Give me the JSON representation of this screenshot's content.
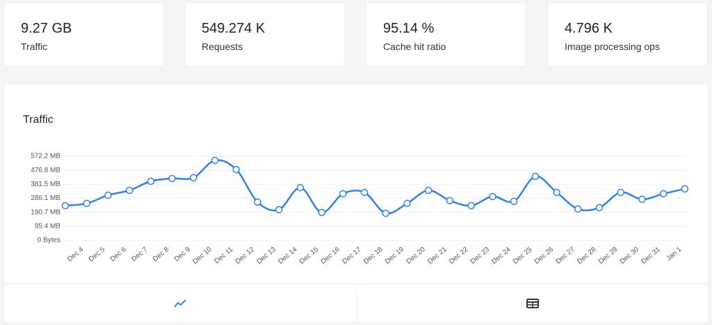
{
  "stats": [
    {
      "value": "9.27 GB",
      "label": "Traffic"
    },
    {
      "value": "549.274 K",
      "label": "Requests"
    },
    {
      "value": "95.14 %",
      "label": "Cache hit ratio"
    },
    {
      "value": "4.796 K",
      "label": "Image processing ops"
    }
  ],
  "chart_data": {
    "type": "line",
    "title": "Traffic",
    "categories": [
      null,
      "Dec 4",
      "Dec 5",
      "Dec 6",
      "Dec 7",
      "Dec 8",
      "Dec 9",
      "Dec 10",
      "Dec 11",
      "Dec 12",
      "Dec 13",
      "Dec 14",
      "Dec 15",
      "Dec 16",
      "Dec 17",
      "Dec 18",
      "Dec 19",
      "Dec 20",
      "Dec 21",
      "Dec 22",
      "Dec 23",
      "Dec 24",
      "Dec 25",
      "Dec 26",
      "Dec 27",
      "Dec 28",
      "Dec 29",
      "Dec 30",
      "Dec 31",
      "Jan 1"
    ],
    "series": [
      {
        "name": "Traffic",
        "color": "#2f80ed",
        "values": [
          236,
          251,
          307,
          340,
          402,
          421,
          426,
          544,
          482,
          260,
          208,
          359,
          189,
          317,
          326,
          184,
          251,
          340,
          270,
          236,
          298,
          265,
          435,
          326,
          213,
          222,
          326,
          279,
          317,
          350
        ]
      }
    ],
    "ylim": [
      0,
      572.2
    ],
    "yticks": [
      {
        "value": 0,
        "label": "0 Bytes"
      },
      {
        "value": 95.4,
        "label": "95.4 MB"
      },
      {
        "value": 190.7,
        "label": "190.7 MB"
      },
      {
        "value": 286.1,
        "label": "286.1 MB"
      },
      {
        "value": 381.5,
        "label": "381.5 MB"
      },
      {
        "value": 476.8,
        "label": "476.8 MB"
      },
      {
        "value": 572.2,
        "label": "572.2 MB"
      }
    ],
    "grid": true
  }
}
